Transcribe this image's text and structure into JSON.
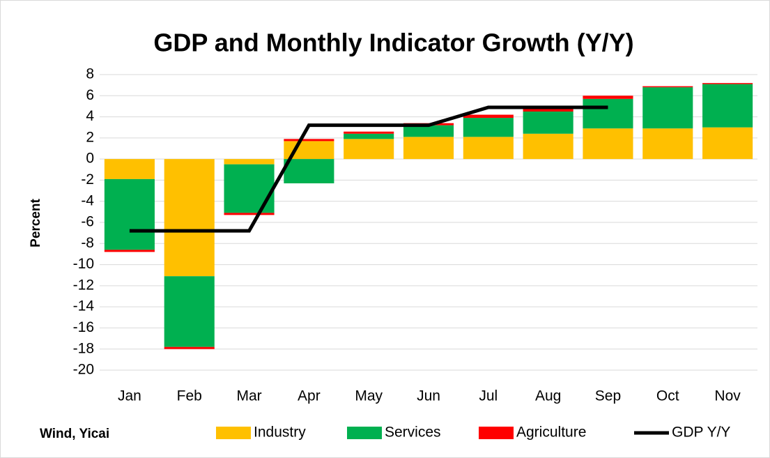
{
  "chart_data": {
    "type": "bar",
    "stacked": true,
    "title": "GDP and Monthly Indicator Growth (Y/Y)",
    "y_label": "Percent",
    "source": "Wind, Yicai",
    "categories": [
      "Jan",
      "Feb",
      "Mar",
      "Apr",
      "May",
      "Jun",
      "Jul",
      "Aug",
      "Sep",
      "Oct",
      "Nov"
    ],
    "series": [
      {
        "name": "Industry",
        "color": "#ffc000",
        "values": [
          -1.9,
          -11.1,
          -0.5,
          1.7,
          1.9,
          2.1,
          2.1,
          2.4,
          2.9,
          2.9,
          3.0
        ]
      },
      {
        "name": "Services",
        "color": "#00b050",
        "values": [
          -6.7,
          -6.7,
          -4.6,
          -2.3,
          0.5,
          1.1,
          1.8,
          2.1,
          2.8,
          3.9,
          4.1
        ]
      },
      {
        "name": "Agriculture",
        "color": "#ff0000",
        "values": [
          -0.2,
          -0.2,
          -0.2,
          0.2,
          0.2,
          0.2,
          0.3,
          0.3,
          0.3,
          0.1,
          0.1
        ]
      },
      {
        "name": "GDP Y/Y",
        "type": "line",
        "color": "#000000",
        "values": [
          -6.8,
          -6.8,
          -6.8,
          3.2,
          3.2,
          3.2,
          4.9,
          4.9,
          4.9,
          null,
          null
        ]
      }
    ],
    "ylim": [
      -20,
      8
    ],
    "yticks": [
      -20,
      -18,
      -16,
      -14,
      -12,
      -10,
      -8,
      -6,
      -4,
      -2,
      0,
      2,
      4,
      6,
      8
    ],
    "grid": true,
    "legend": "bottom"
  }
}
